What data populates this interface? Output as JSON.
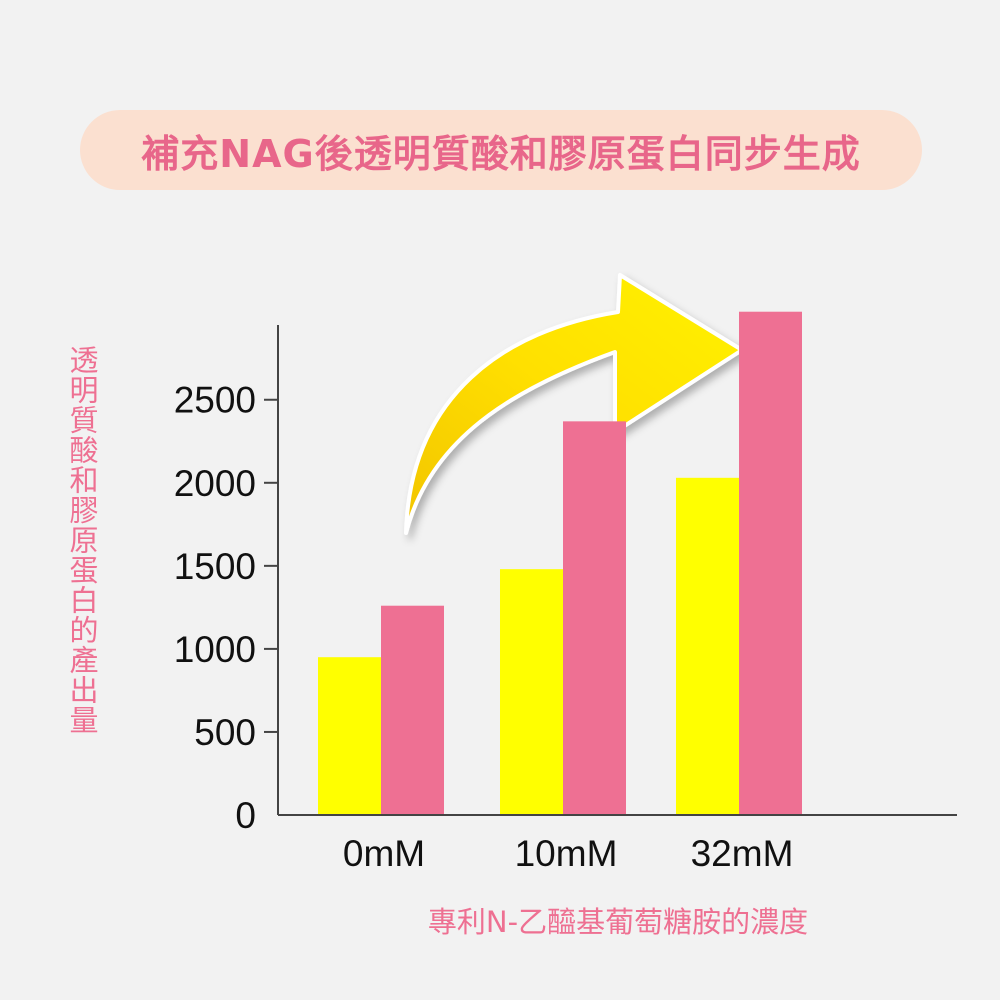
{
  "title": "補充NAG後透明質酸和膠原蛋白同步生成",
  "chart_data": {
    "type": "bar",
    "ylabel": "透明質酸和膠原蛋白的產出量",
    "xlabel": "專利N-乙醯基葡萄糖胺的濃度",
    "categories": [
      "0mM",
      "10mM",
      "32mM"
    ],
    "yticks": [
      0,
      500,
      1000,
      1500,
      2000,
      2500
    ],
    "ylim": [
      0,
      2950
    ],
    "grid": false,
    "series": [
      {
        "color": "#ffff00",
        "values": [
          950,
          1480,
          2030
        ]
      },
      {
        "color": "#ee7093",
        "values": [
          1260,
          2370,
          3030
        ]
      }
    ],
    "annotation": "yellow curved arrow pointing up-right"
  },
  "colors": {
    "background": "#f2f2f2",
    "title_pill": "#fbe0d0",
    "title_text": "#e8668a",
    "axis_title": "#ee7092",
    "arrow": "#ffe500"
  }
}
